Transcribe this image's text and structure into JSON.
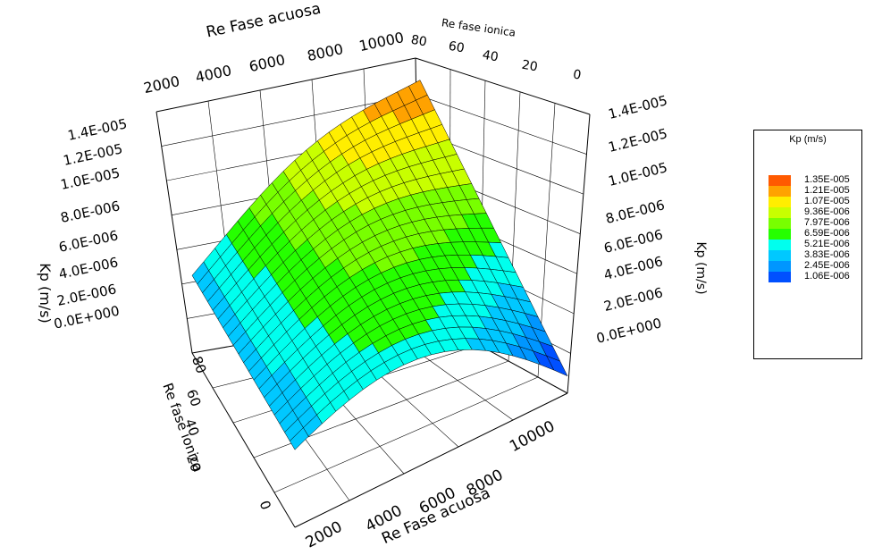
{
  "chart_data": {
    "type": "surface",
    "zlabel": "Kp (m/s)",
    "xlabel": "Re Fase acuosa",
    "ylabel": "Re fase iónica",
    "axis_labels": {
      "back_x": "Re Fase acuosa",
      "back_y": "Re fase ionica",
      "front_x": "Re Fase acuosa",
      "front_y": "Re fase ionica",
      "z_left": "Kp   (m/s)",
      "z_right": "Kp   (m/s)"
    },
    "x_ticks": [
      "2000",
      "4000",
      "6000",
      "8000",
      "10000"
    ],
    "y_ticks": [
      "80",
      "60",
      "40",
      "20",
      "0"
    ],
    "z_ticks": [
      "0.0E+000",
      "2.0E-006",
      "4.0E-006",
      "6.0E-006",
      "8.0E-006",
      "1.0E-005",
      "1.2E-005",
      "1.4E-005"
    ],
    "xlim": [
      2000,
      10000
    ],
    "ylim": [
      0,
      80
    ],
    "zlim": [
      0,
      1.4e-05
    ],
    "surface_samples": [
      {
        "re_acuosa": 2000,
        "re_ionica": 0,
        "kp": 4.5e-06
      },
      {
        "re_acuosa": 2000,
        "re_ionica": 80,
        "kp": 4.8e-06
      },
      {
        "re_acuosa": 10000,
        "re_ionica": 80,
        "kp": 1.35e-05
      },
      {
        "re_acuosa": 10000,
        "re_ionica": 0,
        "kp": 1e-06
      },
      {
        "re_acuosa": 6000,
        "re_ionica": 40,
        "kp": 9e-06
      }
    ],
    "legend": {
      "title": "Kp (m/s)",
      "entries": [
        {
          "label": "1.35E-005",
          "color": "#ff5a00"
        },
        {
          "label": "1.21E-005",
          "color": "#ffa200"
        },
        {
          "label": "1.07E-005",
          "color": "#ffee00"
        },
        {
          "label": "9.36E-006",
          "color": "#c8ff00"
        },
        {
          "label": "7.97E-006",
          "color": "#78ff00"
        },
        {
          "label": "6.59E-006",
          "color": "#26ff00"
        },
        {
          "label": "5.21E-006",
          "color": "#00ffee"
        },
        {
          "label": "3.83E-006",
          "color": "#00c8ff"
        },
        {
          "label": "2.45E-006",
          "color": "#0096ff"
        },
        {
          "label": "1.06E-006",
          "color": "#0050ff"
        }
      ]
    }
  }
}
